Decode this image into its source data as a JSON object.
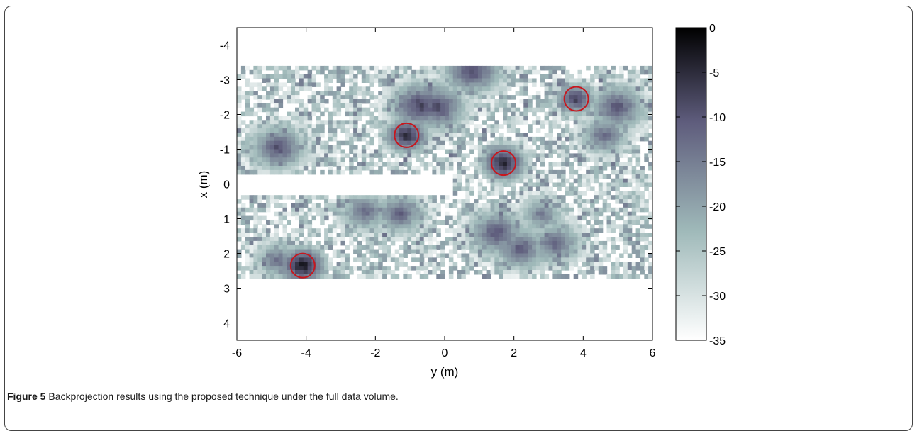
{
  "figure": {
    "label": "Figure 5",
    "caption": "Backprojection results using the proposed technique under the full data volume."
  },
  "chart_data": {
    "type": "heatmap",
    "title": "",
    "xlabel": "y (m)",
    "ylabel": "x (m)",
    "xlim": [
      -6,
      6
    ],
    "ylim": [
      4.5,
      -4.5
    ],
    "y_reversed": true,
    "xticks": [
      "-6",
      "-4",
      "-2",
      "0",
      "2",
      "4",
      "6"
    ],
    "yticks": [
      "-4",
      "-3",
      "-2",
      "-1",
      "0",
      "1",
      "2",
      "3",
      "4"
    ],
    "colorbar": {
      "range": [
        -35,
        0
      ],
      "unit": "",
      "ticks": [
        "0",
        "-5",
        "-10",
        "-15",
        "-20",
        "-25",
        "-30",
        "-35"
      ],
      "colormap": "bone-reversed",
      "colors": [
        "#ffffff",
        "#9fb9b9",
        "#5e5c7c",
        "#000000"
      ]
    },
    "coverage": {
      "y_range": [
        -6,
        6
      ],
      "x_range": [
        -3.4,
        2.7
      ],
      "gap_x_range": [
        -0.3,
        0.3
      ],
      "gap_y_range": [
        -6,
        0.3
      ]
    },
    "detected_targets": [
      {
        "y": -1.1,
        "x": -1.4,
        "level": -2
      },
      {
        "y": 1.7,
        "x": -0.6,
        "level": -1
      },
      {
        "y": 3.8,
        "x": -2.45,
        "level": -5
      },
      {
        "y": -4.1,
        "x": 2.35,
        "level": 0
      }
    ],
    "marker_color": "#c8161d",
    "blobs": [
      {
        "y": 0.8,
        "x": -3.25,
        "level": -7
      },
      {
        "y": -0.7,
        "x": -2.25,
        "level": -6
      },
      {
        "y": -0.2,
        "x": -2.2,
        "level": -7
      },
      {
        "y": 5.0,
        "x": -2.2,
        "level": -8
      },
      {
        "y": 4.6,
        "x": -1.4,
        "level": -11
      },
      {
        "y": -4.8,
        "x": -1.05,
        "level": -8
      },
      {
        "y": -2.3,
        "x": 0.8,
        "level": -11
      },
      {
        "y": -1.3,
        "x": 0.85,
        "level": -10
      },
      {
        "y": 1.5,
        "x": 1.4,
        "level": -8
      },
      {
        "y": 2.2,
        "x": 1.85,
        "level": -9
      },
      {
        "y": 3.2,
        "x": 1.7,
        "level": -10
      },
      {
        "y": -4.8,
        "x": 2.2,
        "level": -12
      },
      {
        "y": 2.8,
        "x": 0.9,
        "level": -13
      }
    ]
  }
}
